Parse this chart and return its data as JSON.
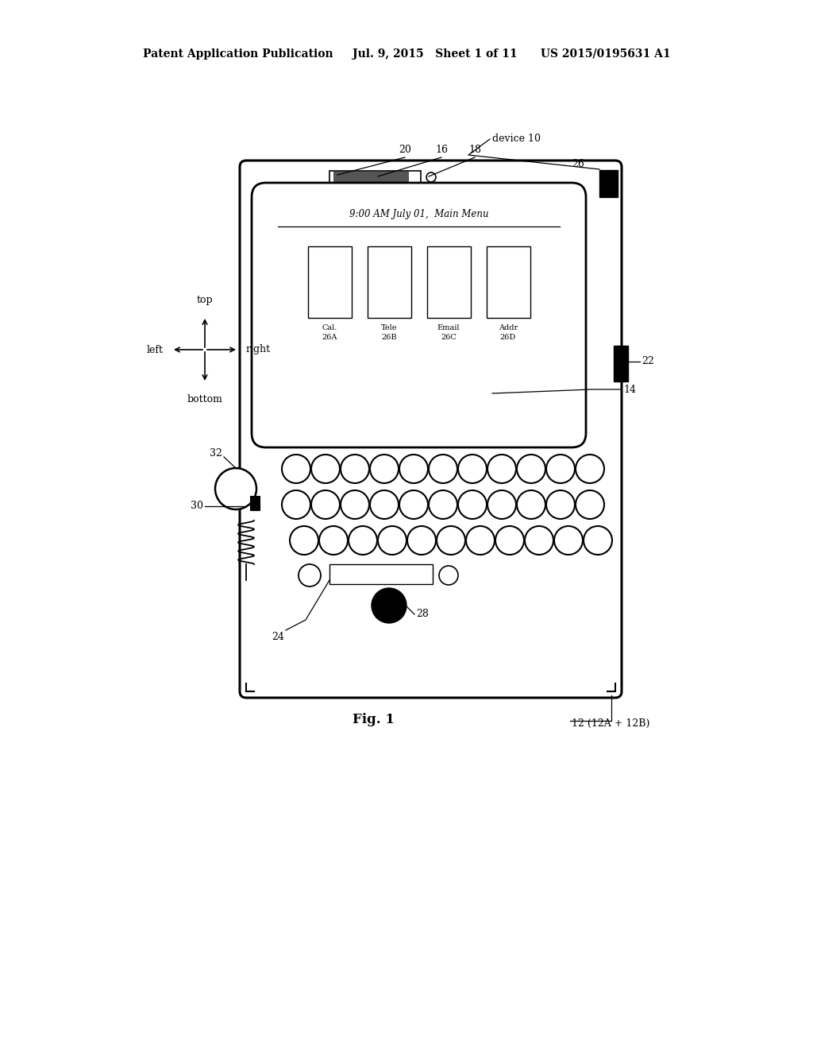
{
  "bg_color": "#ffffff",
  "line_color": "#000000",
  "title_line1": "Patent Application Publication",
  "title_line2": "Jul. 9, 2015   Sheet 1 of 11",
  "title_line3": "US 2015/0195631 A1",
  "fig_label": "Fig. 1",
  "fig_note": "12 (12A + 12B)"
}
